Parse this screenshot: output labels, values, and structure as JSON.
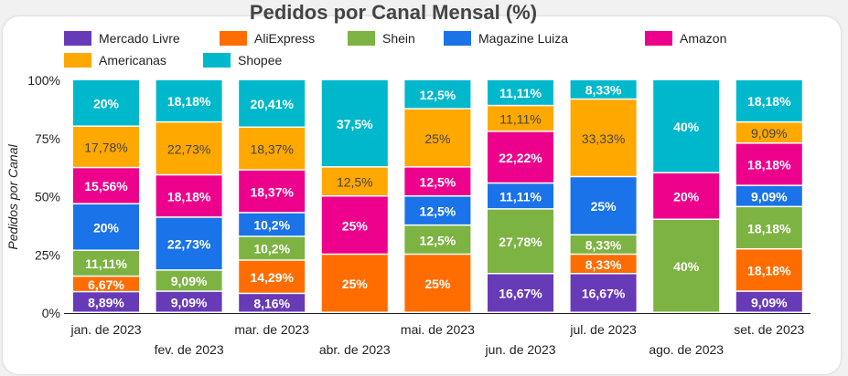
{
  "chart_data": {
    "type": "bar",
    "stacked": "percent",
    "title": "Pedidos por Canal Mensal (%)",
    "ylabel": "Pedidos por Canal",
    "xlabel": "",
    "ylim": [
      0,
      100
    ],
    "yticks": [
      "0%",
      "25%",
      "50%",
      "75%",
      "100%"
    ],
    "legend_position": "top",
    "categories": [
      "jan. de 2023",
      "fev. de 2023",
      "mar. de 2023",
      "abr. de 2023",
      "mai. de 2023",
      "jun. de 2023",
      "jul. de 2023",
      "ago. de 2023",
      "set. de 2023"
    ],
    "series": [
      {
        "name": "Mercado Livre",
        "color": "#673ab7",
        "values": [
          8.89,
          9.09,
          8.16,
          0,
          0,
          16.67,
          16.67,
          0,
          9.09
        ]
      },
      {
        "name": "AliExpress",
        "color": "#ff6d00",
        "values": [
          6.67,
          0,
          14.29,
          25,
          25,
          0,
          8.33,
          0,
          18.18
        ]
      },
      {
        "name": "Shein",
        "color": "#7cb342",
        "values": [
          11.11,
          9.09,
          10.2,
          0,
          12.5,
          27.78,
          8.33,
          40,
          18.18
        ]
      },
      {
        "name": "Magazine Luiza",
        "color": "#1a73e8",
        "values": [
          20,
          22.73,
          10.2,
          0,
          12.5,
          11.11,
          25,
          0,
          9.09
        ]
      },
      {
        "name": "Amazon",
        "color": "#ec008c",
        "values": [
          15.56,
          18.18,
          18.37,
          25,
          12.5,
          22.22,
          0,
          20,
          18.18
        ]
      },
      {
        "name": "Americanas",
        "color": "#ffa800",
        "values": [
          17.78,
          22.73,
          18.37,
          12.5,
          25,
          11.11,
          33.33,
          0,
          9.09
        ]
      },
      {
        "name": "Shopee",
        "color": "#00b8cc",
        "values": [
          20,
          18.18,
          20.41,
          37.5,
          12.5,
          11.11,
          8.33,
          40,
          18.18
        ]
      }
    ]
  }
}
